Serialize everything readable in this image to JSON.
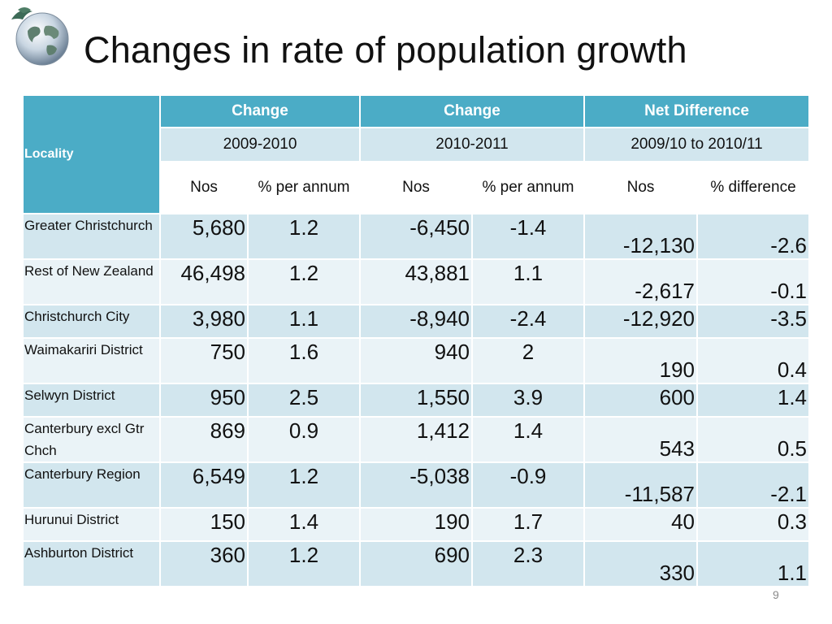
{
  "slide": {
    "title": "Changes in rate of population growth",
    "page_number": "9"
  },
  "table": {
    "locality_header": "Locality",
    "group_headers": [
      "Change",
      "Change",
      "Net Difference"
    ],
    "periods": [
      "2009-2010",
      "2010-2011",
      "2009/10 to 2010/11"
    ],
    "sub_headers": [
      "Nos",
      "% per annum",
      "Nos",
      "% per annum",
      "Nos",
      "% difference"
    ],
    "rows": [
      {
        "locality": "Greater Christchurch",
        "values": [
          "5,680",
          "1.2",
          "-6,450",
          "-1.4",
          "-12,130",
          "-2.6"
        ]
      },
      {
        "locality": "Rest of New Zealand",
        "values": [
          "46,498",
          "1.2",
          "43,881",
          "1.1",
          "-2,617",
          "-0.1"
        ]
      },
      {
        "locality": "Christchurch City",
        "values": [
          "3,980",
          "1.1",
          "-8,940",
          "-2.4",
          "-12,920",
          "-3.5"
        ]
      },
      {
        "locality": "Waimakariri District",
        "values": [
          "750",
          "1.6",
          "940",
          "2",
          "190",
          "0.4"
        ]
      },
      {
        "locality": "Selwyn District",
        "values": [
          "950",
          "2.5",
          "1,550",
          "3.9",
          "600",
          "1.4"
        ]
      },
      {
        "locality": "Canterbury excl Gtr Chch",
        "values": [
          "869",
          "0.9",
          "1,412",
          "1.4",
          "543",
          "0.5"
        ]
      },
      {
        "locality": "Canterbury Region",
        "values": [
          "6,549",
          "1.2",
          "-5,038",
          "-0.9",
          "-11,587",
          "-2.1"
        ]
      },
      {
        "locality": "Hurunui District",
        "values": [
          "150",
          "1.4",
          "190",
          "1.7",
          "40",
          "0.3"
        ]
      },
      {
        "locality": "Ashburton District",
        "values": [
          "360",
          "1.2",
          "690",
          "2.3",
          "330",
          "1.1"
        ]
      }
    ]
  },
  "colors": {
    "header_teal": "#4bacc6",
    "row_band_dark": "#d2e6ee",
    "row_band_light": "#eaf3f7"
  },
  "icons": {
    "logo": "globe-icon"
  }
}
